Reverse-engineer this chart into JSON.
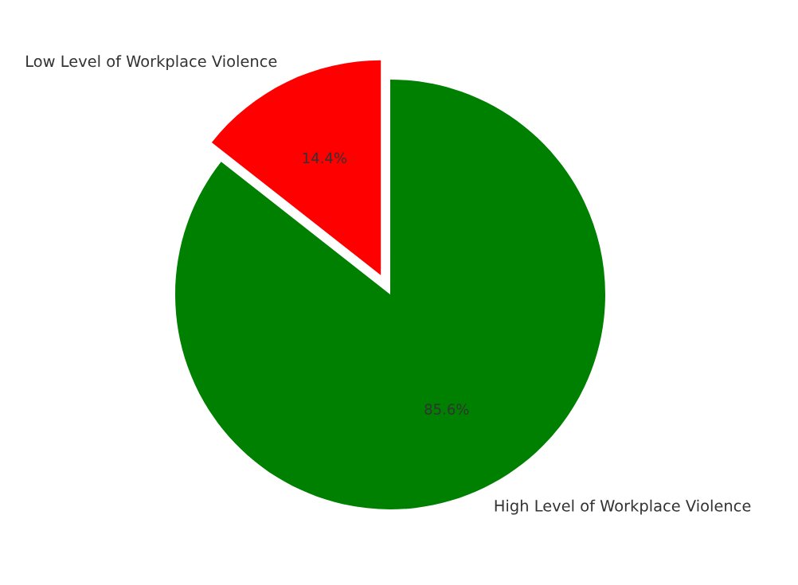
{
  "chart_data": {
    "type": "pie",
    "categories": [
      "Low Level of Workplace Violence",
      "High Level of Workplace Violence"
    ],
    "values": [
      14.4,
      85.6
    ],
    "colors": [
      "#ff0000",
      "#008000"
    ],
    "value_labels": [
      "14.4%",
      "85.6%"
    ],
    "legend": false
  }
}
